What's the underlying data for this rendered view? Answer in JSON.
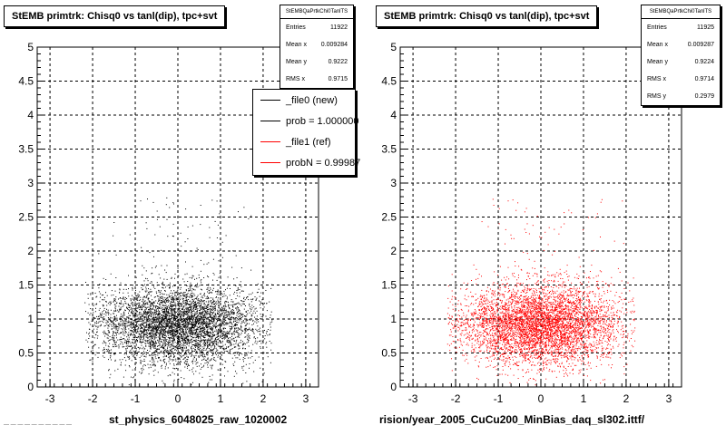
{
  "chart_data": [
    {
      "type": "scatter",
      "title": "StEMB primtrk: Chisq0 vs tanl(dip), tpc+svt",
      "xlabel": "st_physics_6048025_raw_1020002",
      "ylabel": "",
      "xlim": [
        -3.3,
        3.3
      ],
      "ylim": [
        0,
        5
      ],
      "xticks": [
        "-3",
        "-2",
        "-1",
        "0",
        "1",
        "2",
        "3"
      ],
      "yticks": [
        "0",
        "0.5",
        "1",
        "1.5",
        "2",
        "2.5",
        "3",
        "3.5",
        "4",
        "4.5",
        "5"
      ],
      "grid": true,
      "marker_color": "#000000",
      "stats": {
        "header": "StEMBQaPrtkChi0TanlTS",
        "rows": [
          {
            "label": "Entries",
            "value": "11922"
          },
          {
            "label": "Mean x",
            "value": "0.009284"
          },
          {
            "label": "Mean y",
            "value": "0.9222"
          },
          {
            "label": "RMS x",
            "value": "0.9715"
          }
        ]
      },
      "legend": [
        {
          "label": "_file0 (new)",
          "color": "#000000"
        },
        {
          "label": "prob = 1.000000",
          "color": "#000000"
        },
        {
          "label": "_file1 (ref)",
          "color": "#ff0000"
        },
        {
          "label": "probN = 0.99987",
          "color": "#ff0000"
        }
      ]
    },
    {
      "type": "scatter",
      "title": "StEMB primtrk: Chisq0 vs tanl(dip), tpc+svt",
      "xlabel": "rision/year_2005_CuCu200_MinBias_daq_sl302.ittf/",
      "ylabel": "",
      "xlim": [
        -3.3,
        3.3
      ],
      "ylim": [
        0,
        5
      ],
      "xticks": [
        "-3",
        "-2",
        "-1",
        "0",
        "1",
        "2",
        "3"
      ],
      "yticks": [
        "0",
        "0.5",
        "1",
        "1.5",
        "2",
        "2.5",
        "3",
        "3.5",
        "4",
        "4.5",
        "5"
      ],
      "grid": true,
      "marker_color": "#ff0000",
      "stats": {
        "header": "StEMBQaPrtkChi0TanlTS",
        "rows": [
          {
            "label": "Entries",
            "value": "11925"
          },
          {
            "label": "Mean x",
            "value": "0.009287"
          },
          {
            "label": "Mean y",
            "value": "0.9224"
          },
          {
            "label": "RMS x",
            "value": "0.9714"
          },
          {
            "label": "RMS y",
            "value": "0.2979"
          }
        ]
      }
    }
  ],
  "footer_text": "— — — — — — — — — —"
}
